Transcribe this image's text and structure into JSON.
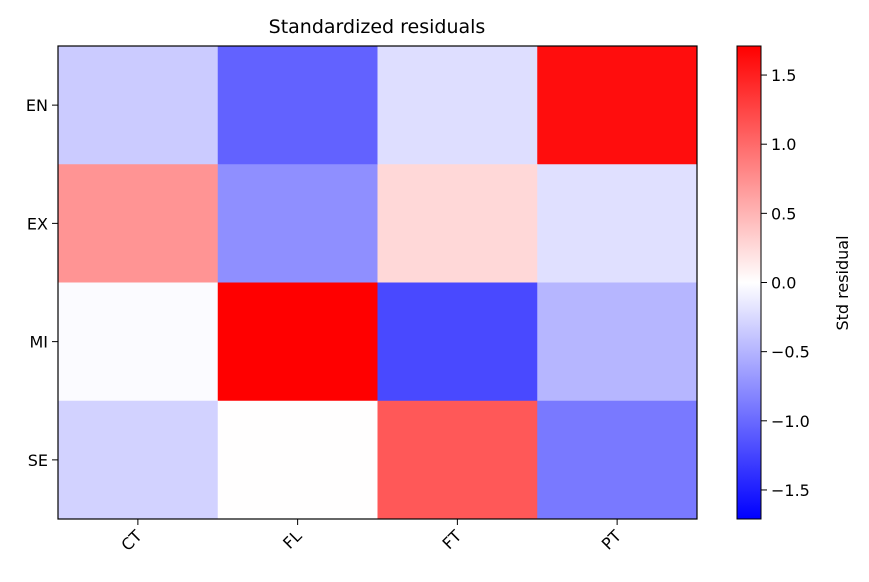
{
  "chart_data": {
    "type": "heatmap",
    "title": "Standardized residuals",
    "x_categories": [
      "CT",
      "FL",
      "FT",
      "PT"
    ],
    "y_categories": [
      "EN",
      "EX",
      "MI",
      "SE"
    ],
    "values": [
      [
        -0.35,
        -1.05,
        -0.22,
        1.62
      ],
      [
        0.72,
        -0.75,
        0.26,
        -0.21
      ],
      [
        -0.03,
        1.71,
        -1.22,
        -0.49
      ],
      [
        -0.3,
        0.01,
        1.12,
        -0.9
      ]
    ],
    "colormap": "bwr",
    "vmin": -1.71,
    "vmax": 1.71,
    "colorbar": {
      "label": "Std residual",
      "ticks": [
        -1.5,
        -1.0,
        -0.5,
        0.0,
        0.5,
        1.0,
        1.5
      ],
      "tick_labels": [
        "−1.5",
        "−1.0",
        "−0.5",
        "0.0",
        "0.5",
        "1.0",
        "1.5"
      ]
    },
    "xlabel": "",
    "ylabel": "",
    "grid": false
  }
}
